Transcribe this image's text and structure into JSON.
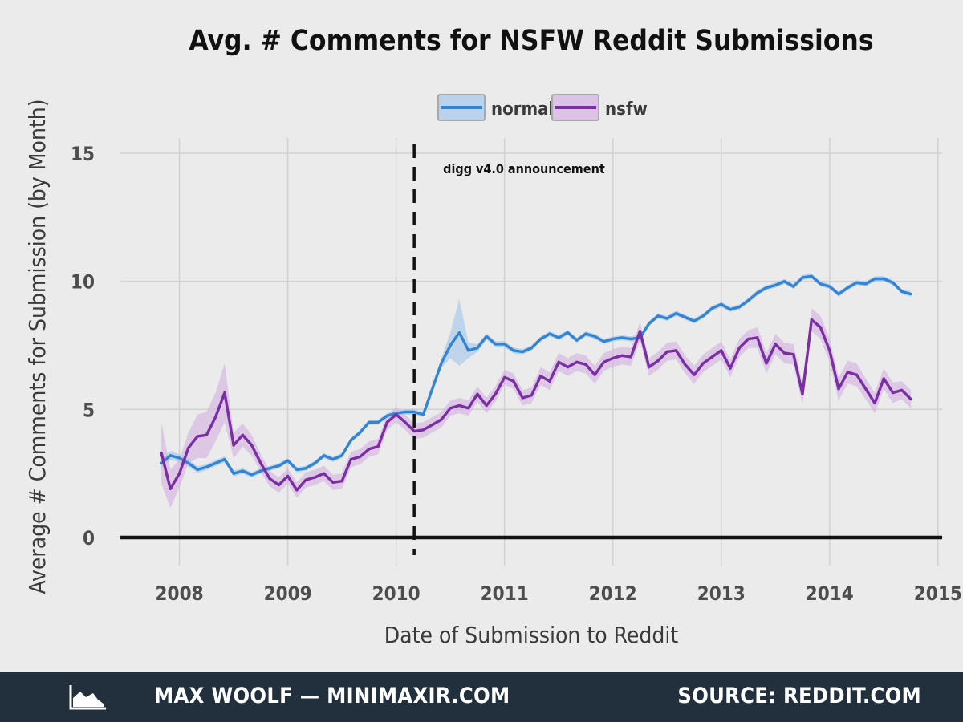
{
  "chart_data": {
    "type": "line",
    "title": "Avg. # Comments for NSFW Reddit Submissions",
    "xlabel": "Date of Submission to Reddit",
    "ylabel": "Average # Comments for Submission (by Month)",
    "xlim": [
      "2007-06-15",
      "2015-01-15"
    ],
    "ylim": [
      0,
      15
    ],
    "x_ticks": [
      "2008",
      "2009",
      "2010",
      "2011",
      "2012",
      "2013",
      "2014",
      "2015"
    ],
    "y_ticks": [
      0,
      5,
      10,
      15
    ],
    "grid": true,
    "legend_position": "top-center",
    "start_month": "2007-11",
    "annotation": {
      "label": "digg v4.0 announcement",
      "x": "2010-03-01"
    },
    "series": [
      {
        "name": "normal",
        "color": "#3384d2",
        "band_color": "#a6c8ea",
        "values": [
          2.9,
          3.2,
          3.1,
          2.9,
          2.65,
          2.75,
          2.9,
          3.05,
          2.5,
          2.6,
          2.45,
          2.6,
          2.7,
          2.8,
          3.0,
          2.65,
          2.7,
          2.9,
          3.2,
          3.05,
          3.2,
          3.8,
          4.1,
          4.5,
          4.5,
          4.75,
          4.85,
          4.9,
          4.9,
          4.8,
          5.8,
          6.8,
          7.5,
          8.0,
          7.3,
          7.4,
          7.85,
          7.55,
          7.55,
          7.3,
          7.25,
          7.4,
          7.75,
          7.95,
          7.8,
          8.0,
          7.7,
          7.95,
          7.85,
          7.65,
          7.75,
          7.8,
          7.75,
          7.8,
          8.35,
          8.65,
          8.55,
          8.75,
          8.6,
          8.45,
          8.65,
          8.95,
          9.1,
          8.9,
          9.0,
          9.25,
          9.55,
          9.75,
          9.85,
          10.0,
          9.8,
          10.15,
          10.2,
          9.9,
          9.8,
          9.5,
          9.75,
          9.95,
          9.9,
          10.1,
          10.1,
          9.95,
          9.6,
          9.5
        ],
        "band": [
          0.18,
          0.18,
          0.15,
          0.15,
          0.12,
          0.12,
          0.12,
          0.12,
          0.12,
          0.1,
          0.1,
          0.1,
          0.1,
          0.1,
          0.1,
          0.1,
          0.1,
          0.1,
          0.1,
          0.1,
          0.1,
          0.1,
          0.1,
          0.1,
          0.1,
          0.1,
          0.1,
          0.1,
          0.1,
          0.1,
          0.12,
          0.18,
          0.5,
          1.3,
          0.3,
          0.15,
          0.12,
          0.12,
          0.12,
          0.12,
          0.1,
          0.1,
          0.1,
          0.1,
          0.1,
          0.1,
          0.1,
          0.1,
          0.1,
          0.1,
          0.1,
          0.1,
          0.1,
          0.1,
          0.1,
          0.1,
          0.1,
          0.1,
          0.1,
          0.1,
          0.1,
          0.1,
          0.1,
          0.1,
          0.1,
          0.1,
          0.1,
          0.1,
          0.1,
          0.1,
          0.1,
          0.1,
          0.1,
          0.1,
          0.1,
          0.1,
          0.1,
          0.1,
          0.1,
          0.1,
          0.1,
          0.1,
          0.1,
          0.1
        ]
      },
      {
        "name": "nsfw",
        "color": "#7b2ea3",
        "band_color": "#d4b3e1",
        "values": [
          3.3,
          1.9,
          2.5,
          3.5,
          3.95,
          4.0,
          4.7,
          5.65,
          3.6,
          4.0,
          3.6,
          2.9,
          2.3,
          2.05,
          2.4,
          1.85,
          2.25,
          2.35,
          2.5,
          2.15,
          2.2,
          3.05,
          3.15,
          3.45,
          3.55,
          4.5,
          4.8,
          4.5,
          4.15,
          4.2,
          4.4,
          4.6,
          5.05,
          5.15,
          5.05,
          5.6,
          5.15,
          5.6,
          6.25,
          6.1,
          5.45,
          5.55,
          6.3,
          6.1,
          6.85,
          6.65,
          6.85,
          6.75,
          6.35,
          6.85,
          7.0,
          7.1,
          7.05,
          8.05,
          6.65,
          6.9,
          7.25,
          7.3,
          6.75,
          6.35,
          6.8,
          7.05,
          7.3,
          6.6,
          7.4,
          7.75,
          7.8,
          6.8,
          7.55,
          7.2,
          7.15,
          5.6,
          8.5,
          8.2,
          7.3,
          5.8,
          6.45,
          6.35,
          5.8,
          5.25,
          6.2,
          5.65,
          5.75,
          5.4
        ],
        "band": [
          1.2,
          0.75,
          0.55,
          0.6,
          0.85,
          0.9,
          0.95,
          1.15,
          0.5,
          0.45,
          0.4,
          0.35,
          0.3,
          0.3,
          0.3,
          0.3,
          0.3,
          0.3,
          0.3,
          0.3,
          0.3,
          0.3,
          0.3,
          0.3,
          0.3,
          0.3,
          0.3,
          0.3,
          0.3,
          0.3,
          0.3,
          0.3,
          0.3,
          0.3,
          0.3,
          0.3,
          0.3,
          0.3,
          0.3,
          0.3,
          0.3,
          0.3,
          0.35,
          0.35,
          0.35,
          0.35,
          0.35,
          0.35,
          0.35,
          0.35,
          0.35,
          0.35,
          0.35,
          0.35,
          0.35,
          0.35,
          0.35,
          0.35,
          0.35,
          0.35,
          0.35,
          0.35,
          0.35,
          0.35,
          0.35,
          0.35,
          0.4,
          0.4,
          0.4,
          0.4,
          0.4,
          0.4,
          0.45,
          0.45,
          0.45,
          0.45,
          0.45,
          0.45,
          0.4,
          0.4,
          0.4,
          0.4,
          0.35,
          0.35
        ]
      }
    ]
  },
  "footer": {
    "author": "MAX WOOLF — MINIMAXIR.COM",
    "source": "SOURCE: REDDIT.COM",
    "logo_icon": "area-chart-logo-icon"
  }
}
